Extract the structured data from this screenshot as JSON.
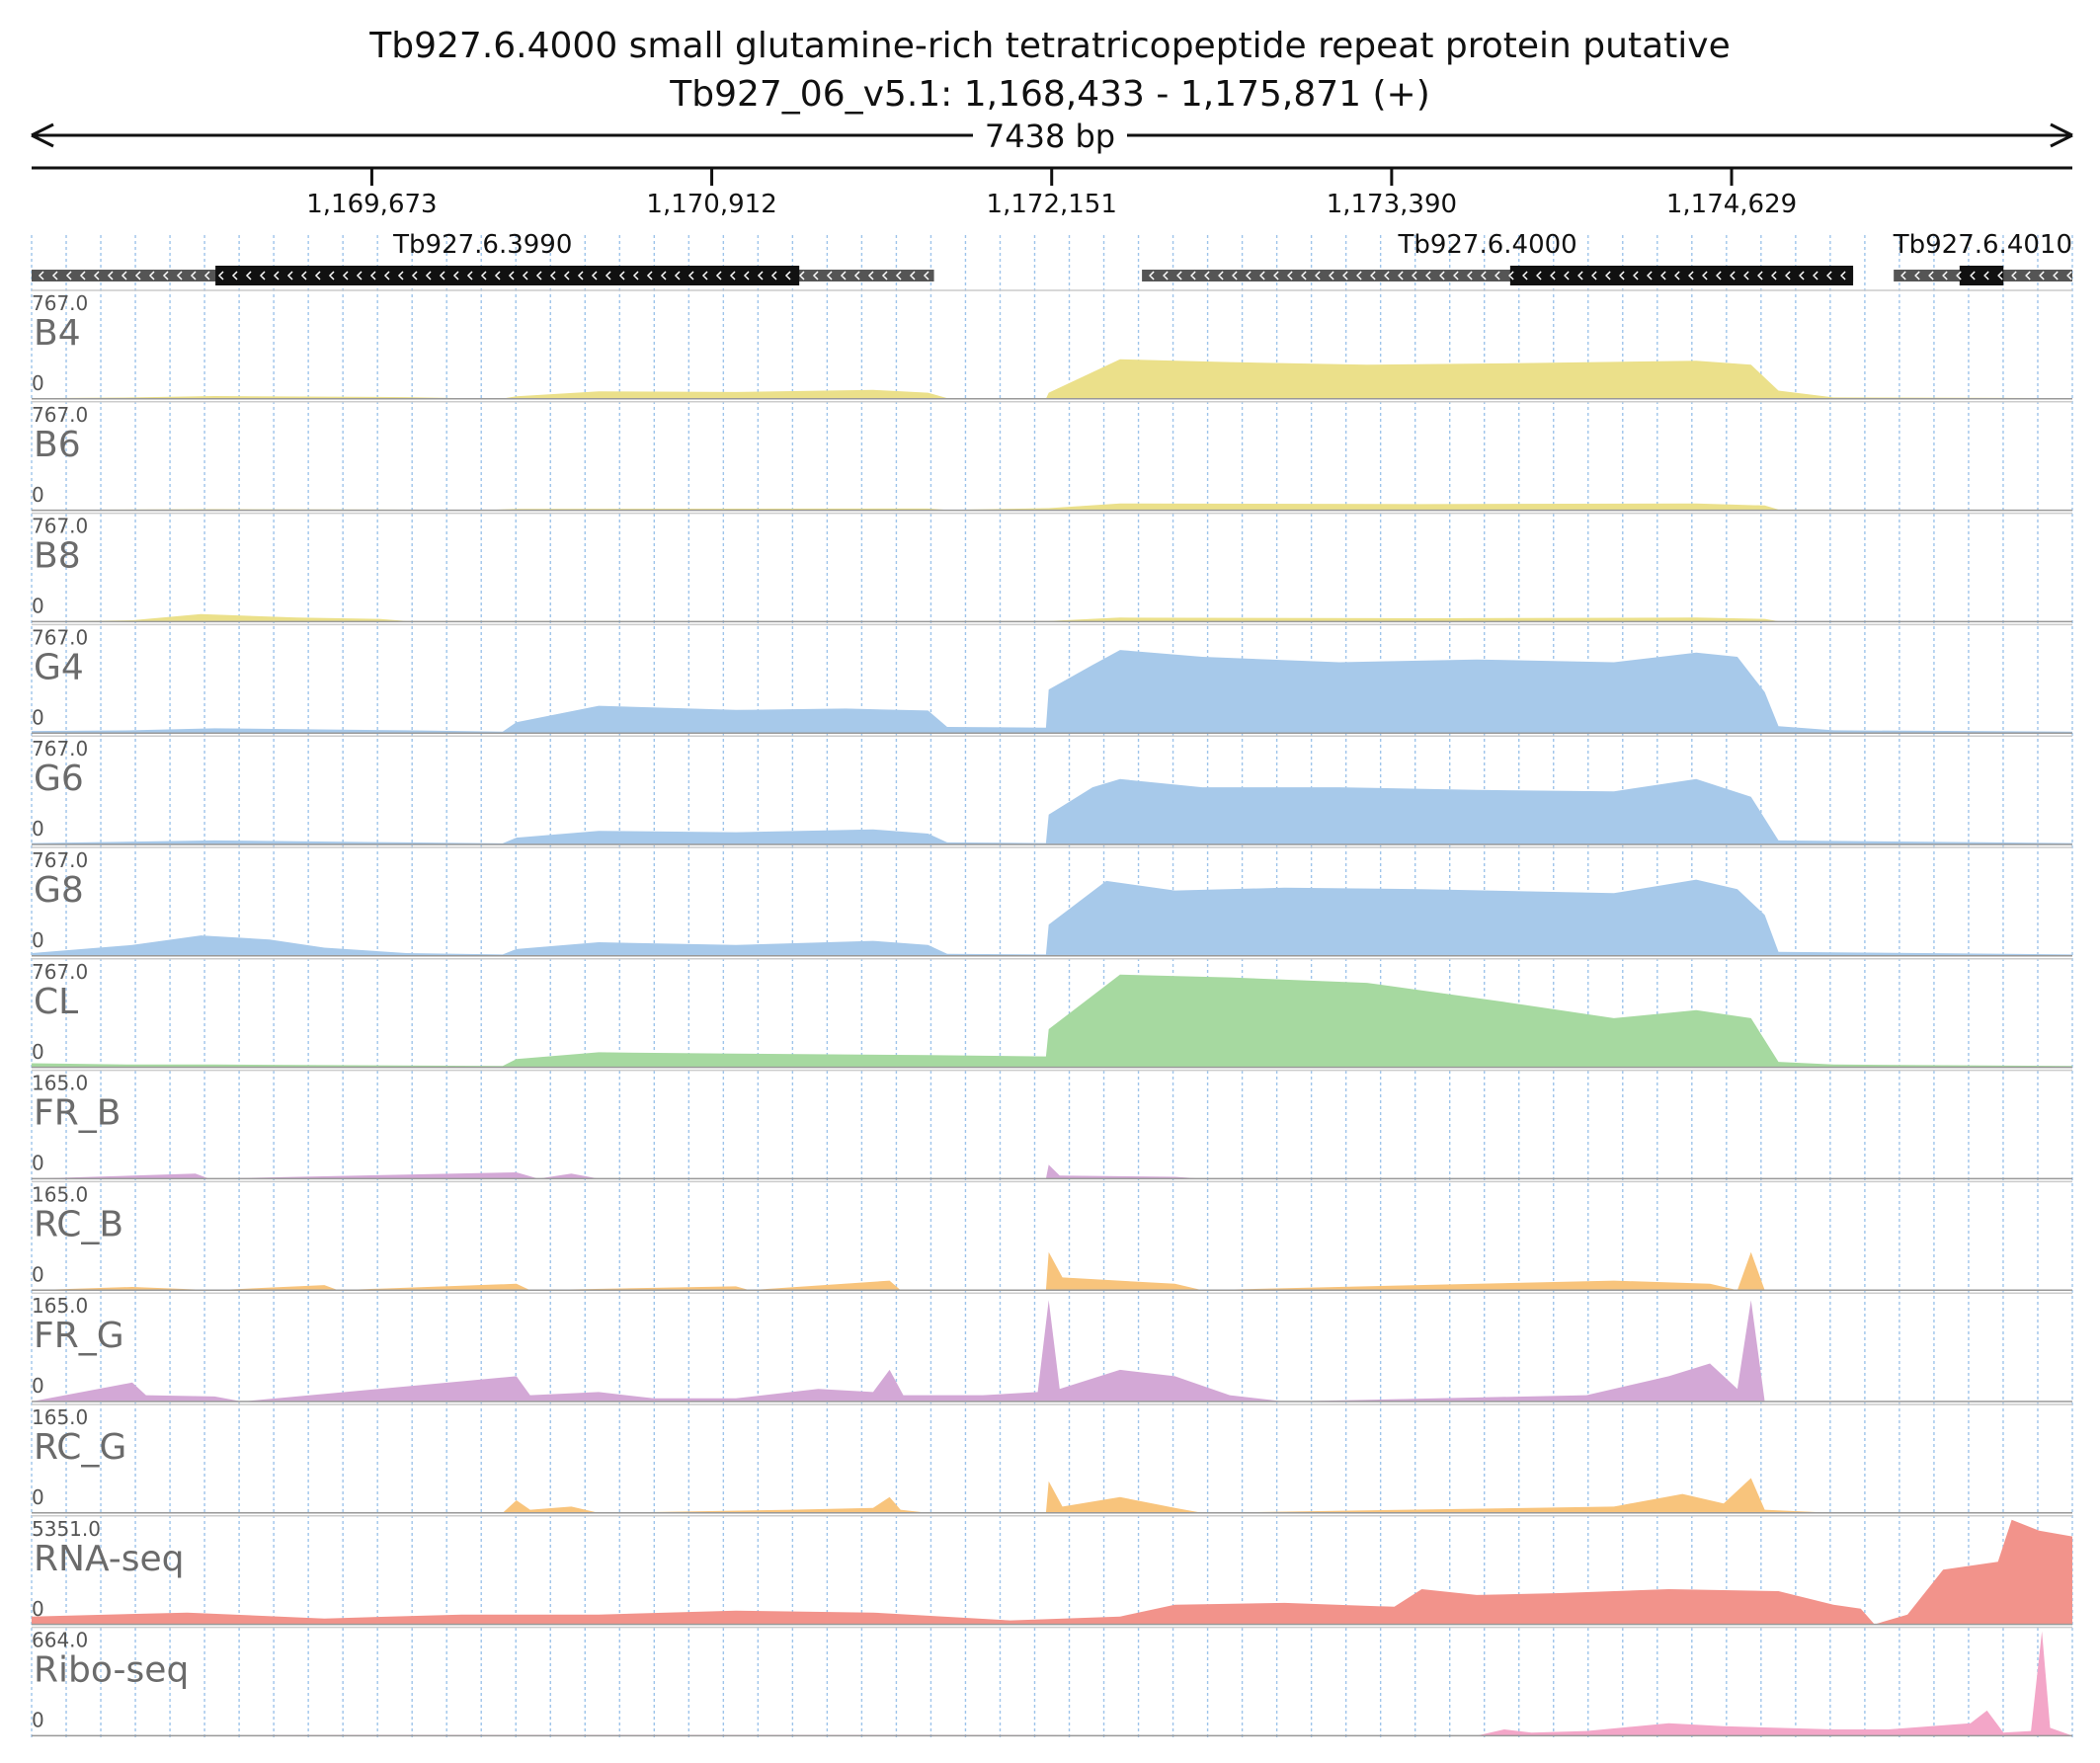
{
  "title": {
    "gene_line": "Tb927.6.4000  small glutamine-rich tetratricopeptide repeat protein  putative",
    "locus_line": "Tb927_06_v5.1: 1,168,433 - 1,175,871 (+)"
  },
  "ruler": {
    "span_label": "7438 bp",
    "start": 1168433,
    "end": 1175871,
    "ticks": [
      {
        "value": 1169673,
        "label": "1,169,673"
      },
      {
        "value": 1170912,
        "label": "1,170,912"
      },
      {
        "value": 1172151,
        "label": "1,172,151"
      },
      {
        "value": 1173390,
        "label": "1,173,390"
      },
      {
        "value": 1174629,
        "label": "1,174,629"
      }
    ]
  },
  "genes": [
    {
      "name": "Tb927.6.3990",
      "strand": "-",
      "utr": [
        1168433,
        1171722
      ],
      "cds": [
        1169103,
        1171231
      ]
    },
    {
      "name": "Tb927.6.4000",
      "strand": "-",
      "utr": [
        1172480,
        1175072
      ],
      "cds": [
        1173822,
        1175072
      ]
    },
    {
      "name": "Tb927.6.4010",
      "strand": "-",
      "utr": [
        1175220,
        1175871
      ],
      "cds": [
        1175460,
        1175620
      ]
    }
  ],
  "colors": {
    "b_series": "#ebe08a",
    "g_series": "#a7c9ea",
    "cl": "#a6d9a0",
    "fr": "#d3a8d6",
    "rc": "#f8c47c",
    "rna": "#f2938b",
    "ribo": "#f3a6c8",
    "track_label": "#6b6b6b",
    "grid": "#9ec4ea"
  },
  "tracks": [
    {
      "name": "B4",
      "max": "767.0",
      "zero": "0",
      "color": "b_series",
      "profile": [
        [
          1168433,
          5
        ],
        [
          1168800,
          10
        ],
        [
          1169100,
          20
        ],
        [
          1169800,
          12
        ],
        [
          1170000,
          5
        ],
        [
          1170150,
          2
        ],
        [
          1170200,
          18
        ],
        [
          1170500,
          55
        ],
        [
          1171000,
          50
        ],
        [
          1171500,
          65
        ],
        [
          1171700,
          45
        ],
        [
          1171770,
          5
        ],
        [
          1172130,
          0
        ],
        [
          1172140,
          45
        ],
        [
          1172400,
          290
        ],
        [
          1172800,
          270
        ],
        [
          1173300,
          250
        ],
        [
          1173800,
          260
        ],
        [
          1174500,
          280
        ],
        [
          1174700,
          250
        ],
        [
          1174800,
          60
        ],
        [
          1175000,
          10
        ],
        [
          1175871,
          5
        ]
      ]
    },
    {
      "name": "B6",
      "max": "767.0",
      "zero": "0",
      "color": "b_series",
      "profile": [
        [
          1168433,
          3
        ],
        [
          1169100,
          8
        ],
        [
          1170100,
          3
        ],
        [
          1170200,
          10
        ],
        [
          1171700,
          12
        ],
        [
          1171770,
          3
        ],
        [
          1172140,
          15
        ],
        [
          1172400,
          50
        ],
        [
          1173500,
          45
        ],
        [
          1174500,
          50
        ],
        [
          1174750,
          35
        ],
        [
          1174800,
          5
        ],
        [
          1175871,
          3
        ]
      ]
    },
    {
      "name": "B8",
      "max": "767.0",
      "zero": "0",
      "color": "b_series",
      "profile": [
        [
          1168433,
          0
        ],
        [
          1168800,
          10
        ],
        [
          1169050,
          55
        ],
        [
          1169400,
          30
        ],
        [
          1169700,
          20
        ],
        [
          1169800,
          5
        ],
        [
          1171700,
          3
        ],
        [
          1172140,
          5
        ],
        [
          1172400,
          30
        ],
        [
          1173500,
          25
        ],
        [
          1174500,
          30
        ],
        [
          1174750,
          20
        ],
        [
          1174800,
          3
        ],
        [
          1175871,
          2
        ]
      ]
    },
    {
      "name": "G4",
      "max": "767.0",
      "zero": "0",
      "color": "g_series",
      "profile": [
        [
          1168433,
          15
        ],
        [
          1168800,
          20
        ],
        [
          1169100,
          35
        ],
        [
          1169800,
          20
        ],
        [
          1170150,
          10
        ],
        [
          1170200,
          80
        ],
        [
          1170500,
          200
        ],
        [
          1171000,
          170
        ],
        [
          1171400,
          180
        ],
        [
          1171700,
          165
        ],
        [
          1171770,
          45
        ],
        [
          1172130,
          40
        ],
        [
          1172140,
          320
        ],
        [
          1172300,
          500
        ],
        [
          1172400,
          610
        ],
        [
          1172700,
          560
        ],
        [
          1173200,
          520
        ],
        [
          1173700,
          540
        ],
        [
          1174200,
          520
        ],
        [
          1174500,
          590
        ],
        [
          1174650,
          560
        ],
        [
          1174750,
          300
        ],
        [
          1174800,
          50
        ],
        [
          1175000,
          20
        ],
        [
          1175871,
          10
        ]
      ]
    },
    {
      "name": "G6",
      "max": "767.0",
      "zero": "0",
      "color": "g_series",
      "profile": [
        [
          1168433,
          10
        ],
        [
          1169100,
          30
        ],
        [
          1169800,
          15
        ],
        [
          1170150,
          8
        ],
        [
          1170200,
          50
        ],
        [
          1170500,
          100
        ],
        [
          1171000,
          90
        ],
        [
          1171500,
          110
        ],
        [
          1171700,
          80
        ],
        [
          1171770,
          15
        ],
        [
          1172130,
          10
        ],
        [
          1172140,
          220
        ],
        [
          1172300,
          420
        ],
        [
          1172400,
          480
        ],
        [
          1172700,
          420
        ],
        [
          1173200,
          420
        ],
        [
          1173700,
          400
        ],
        [
          1174200,
          390
        ],
        [
          1174500,
          480
        ],
        [
          1174700,
          350
        ],
        [
          1174800,
          30
        ],
        [
          1175871,
          10
        ]
      ]
    },
    {
      "name": "G8",
      "max": "767.0",
      "zero": "0",
      "color": "g_series",
      "profile": [
        [
          1168433,
          20
        ],
        [
          1168800,
          80
        ],
        [
          1169050,
          150
        ],
        [
          1169300,
          120
        ],
        [
          1169500,
          60
        ],
        [
          1169800,
          20
        ],
        [
          1170150,
          10
        ],
        [
          1170200,
          50
        ],
        [
          1170500,
          100
        ],
        [
          1171000,
          80
        ],
        [
          1171500,
          110
        ],
        [
          1171700,
          80
        ],
        [
          1171770,
          15
        ],
        [
          1172130,
          10
        ],
        [
          1172140,
          230
        ],
        [
          1172350,
          550
        ],
        [
          1172600,
          480
        ],
        [
          1173000,
          500
        ],
        [
          1173500,
          490
        ],
        [
          1174200,
          460
        ],
        [
          1174500,
          560
        ],
        [
          1174650,
          490
        ],
        [
          1174750,
          300
        ],
        [
          1174800,
          30
        ],
        [
          1175871,
          10
        ]
      ]
    },
    {
      "name": "CL",
      "max": "767.0",
      "zero": "0",
      "color": "cl",
      "profile": [
        [
          1168433,
          30
        ],
        [
          1168800,
          20
        ],
        [
          1169100,
          20
        ],
        [
          1170150,
          10
        ],
        [
          1170200,
          60
        ],
        [
          1170500,
          110
        ],
        [
          1171000,
          100
        ],
        [
          1171700,
          90
        ],
        [
          1172130,
          80
        ],
        [
          1172140,
          280
        ],
        [
          1172400,
          680
        ],
        [
          1172800,
          660
        ],
        [
          1173300,
          620
        ],
        [
          1173800,
          480
        ],
        [
          1174200,
          360
        ],
        [
          1174500,
          420
        ],
        [
          1174700,
          360
        ],
        [
          1174800,
          40
        ],
        [
          1175000,
          20
        ],
        [
          1175871,
          10
        ]
      ]
    },
    {
      "name": "FR_B",
      "max": "165.0",
      "zero": "0",
      "color": "fr",
      "profile": [
        [
          1168433,
          0
        ],
        [
          1169030,
          8
        ],
        [
          1169080,
          0
        ],
        [
          1170200,
          10
        ],
        [
          1170280,
          0
        ],
        [
          1170400,
          8
        ],
        [
          1170500,
          0
        ],
        [
          1172130,
          0
        ],
        [
          1172140,
          22
        ],
        [
          1172180,
          5
        ],
        [
          1172600,
          3
        ],
        [
          1172700,
          0
        ],
        [
          1175871,
          0
        ]
      ]
    },
    {
      "name": "RC_B",
      "max": "165.0",
      "zero": "0",
      "color": "rc",
      "profile": [
        [
          1168433,
          0
        ],
        [
          1168800,
          5
        ],
        [
          1169100,
          0
        ],
        [
          1169500,
          8
        ],
        [
          1169550,
          0
        ],
        [
          1170200,
          10
        ],
        [
          1170250,
          0
        ],
        [
          1171000,
          6
        ],
        [
          1171050,
          0
        ],
        [
          1171560,
          15
        ],
        [
          1171600,
          0
        ],
        [
          1172130,
          0
        ],
        [
          1172140,
          60
        ],
        [
          1172190,
          20
        ],
        [
          1172600,
          10
        ],
        [
          1172700,
          0
        ],
        [
          1174200,
          15
        ],
        [
          1174550,
          10
        ],
        [
          1174650,
          0
        ],
        [
          1174700,
          60
        ],
        [
          1174750,
          0
        ],
        [
          1175871,
          0
        ]
      ]
    },
    {
      "name": "FR_G",
      "max": "165.0",
      "zero": "0",
      "color": "fr",
      "profile": [
        [
          1168433,
          0
        ],
        [
          1168800,
          30
        ],
        [
          1168850,
          10
        ],
        [
          1169100,
          8
        ],
        [
          1169200,
          0
        ],
        [
          1170200,
          40
        ],
        [
          1170250,
          10
        ],
        [
          1170500,
          15
        ],
        [
          1170700,
          5
        ],
        [
          1171000,
          5
        ],
        [
          1171300,
          20
        ],
        [
          1171500,
          15
        ],
        [
          1171560,
          50
        ],
        [
          1171610,
          10
        ],
        [
          1171900,
          10
        ],
        [
          1172100,
          15
        ],
        [
          1172140,
          160
        ],
        [
          1172180,
          20
        ],
        [
          1172400,
          50
        ],
        [
          1172600,
          40
        ],
        [
          1172800,
          10
        ],
        [
          1173000,
          0
        ],
        [
          1174100,
          10
        ],
        [
          1174400,
          40
        ],
        [
          1174550,
          60
        ],
        [
          1174650,
          20
        ],
        [
          1174700,
          160
        ],
        [
          1174750,
          0
        ],
        [
          1175871,
          0
        ]
      ]
    },
    {
      "name": "RC_G",
      "max": "165.0",
      "zero": "0",
      "color": "rc",
      "profile": [
        [
          1168433,
          0
        ],
        [
          1170150,
          0
        ],
        [
          1170200,
          20
        ],
        [
          1170250,
          5
        ],
        [
          1170400,
          10
        ],
        [
          1170500,
          0
        ],
        [
          1171200,
          5
        ],
        [
          1171500,
          8
        ],
        [
          1171560,
          25
        ],
        [
          1171600,
          5
        ],
        [
          1171700,
          0
        ],
        [
          1172130,
          0
        ],
        [
          1172140,
          50
        ],
        [
          1172190,
          10
        ],
        [
          1172400,
          25
        ],
        [
          1172600,
          8
        ],
        [
          1172700,
          0
        ],
        [
          1174200,
          10
        ],
        [
          1174450,
          30
        ],
        [
          1174600,
          15
        ],
        [
          1174700,
          55
        ],
        [
          1174750,
          5
        ],
        [
          1175000,
          0
        ],
        [
          1175871,
          0
        ]
      ]
    },
    {
      "name": "RNA-seq",
      "max": "5351.0",
      "zero": "0",
      "color": "rna",
      "profile": [
        [
          1168433,
          400
        ],
        [
          1169000,
          600
        ],
        [
          1169500,
          300
        ],
        [
          1170000,
          500
        ],
        [
          1170500,
          500
        ],
        [
          1171000,
          700
        ],
        [
          1171500,
          600
        ],
        [
          1172000,
          200
        ],
        [
          1172400,
          400
        ],
        [
          1172600,
          1000
        ],
        [
          1173000,
          1100
        ],
        [
          1173400,
          900
        ],
        [
          1173500,
          1800
        ],
        [
          1173700,
          1500
        ],
        [
          1174000,
          1600
        ],
        [
          1174400,
          1800
        ],
        [
          1174800,
          1700
        ],
        [
          1175000,
          1000
        ],
        [
          1175100,
          800
        ],
        [
          1175150,
          0
        ],
        [
          1175270,
          500
        ],
        [
          1175400,
          2800
        ],
        [
          1175600,
          3200
        ],
        [
          1175650,
          5351
        ],
        [
          1175750,
          4800
        ],
        [
          1175871,
          4500
        ]
      ]
    },
    {
      "name": "Ribo-seq",
      "max": "664.0",
      "zero": "0",
      "color": "ribo",
      "profile": [
        [
          1168433,
          0
        ],
        [
          1169600,
          5
        ],
        [
          1170500,
          5
        ],
        [
          1171500,
          5
        ],
        [
          1173700,
          0
        ],
        [
          1173800,
          40
        ],
        [
          1173900,
          20
        ],
        [
          1174100,
          30
        ],
        [
          1174400,
          80
        ],
        [
          1174600,
          60
        ],
        [
          1174800,
          50
        ],
        [
          1175000,
          40
        ],
        [
          1175200,
          40
        ],
        [
          1175500,
          80
        ],
        [
          1175560,
          160
        ],
        [
          1175620,
          20
        ],
        [
          1175720,
          30
        ],
        [
          1175760,
          664
        ],
        [
          1175790,
          50
        ],
        [
          1175871,
          0
        ]
      ]
    }
  ]
}
